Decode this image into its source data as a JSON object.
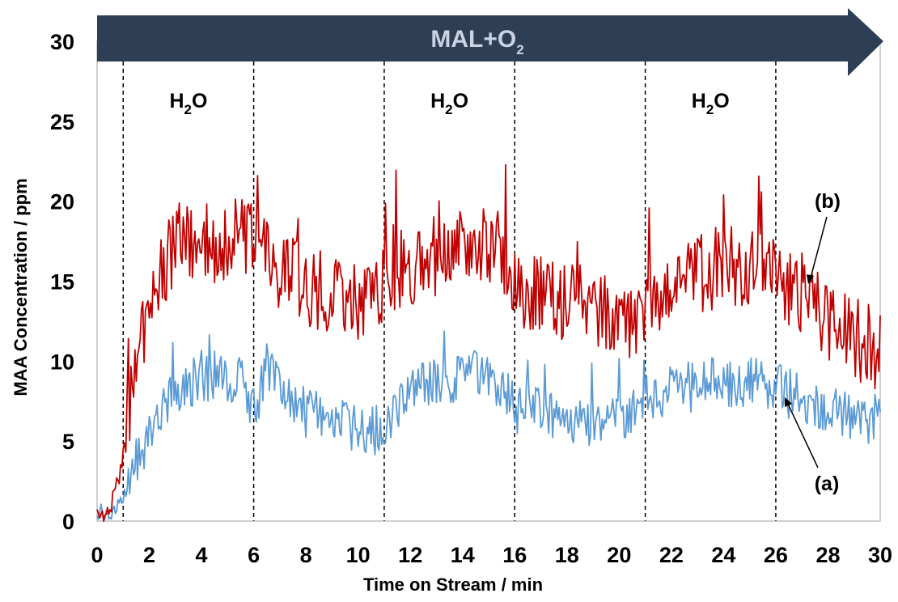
{
  "chart_data": {
    "type": "line",
    "xlabel": "Time on Stream / min",
    "ylabel": "MAA Concentration / ppm",
    "xlim": [
      0,
      30
    ],
    "ylim": [
      0,
      30
    ],
    "x_ticks": [
      "0",
      "2",
      "4",
      "6",
      "8",
      "10",
      "12",
      "14",
      "16",
      "18",
      "20",
      "22",
      "24",
      "26",
      "28",
      "30"
    ],
    "y_ticks": [
      "0",
      "5",
      "10",
      "15",
      "20",
      "25",
      "30"
    ],
    "grid": false,
    "legend": "none",
    "banner": {
      "text": "MAL+O",
      "subscript": "2",
      "color": "#2d3e55",
      "text_color": "#c9d3e4"
    },
    "phase_boundaries": [
      1,
      6,
      11,
      16,
      21,
      26
    ],
    "regions": [
      {
        "label": "H",
        "subscript": "2",
        "suffix": "O",
        "x_start": 1,
        "x_end": 6
      },
      {
        "label": "H",
        "subscript": "2",
        "suffix": "O",
        "x_start": 11,
        "x_end": 16
      },
      {
        "label": "H",
        "subscript": "2",
        "suffix": "O",
        "x_start": 21,
        "x_end": 26
      }
    ],
    "series": [
      {
        "label": "(a)",
        "color": "#5b9bd5",
        "x": [
          0,
          0.5,
          1,
          1.5,
          2,
          2.5,
          3,
          3.5,
          4,
          4.5,
          5,
          5.5,
          6,
          6.5,
          7,
          7.5,
          8,
          8.5,
          9,
          9.5,
          10,
          10.5,
          11,
          11.5,
          12,
          12.5,
          13,
          13.5,
          14,
          14.5,
          15,
          15.5,
          16,
          16.5,
          17,
          17.5,
          18,
          18.5,
          19,
          19.5,
          20,
          20.5,
          21,
          21.5,
          22,
          22.5,
          23,
          23.5,
          24,
          24.5,
          25,
          25.5,
          26,
          26.5,
          27,
          27.5,
          28,
          28.5,
          29,
          29.5,
          30
        ],
        "y": [
          0.2,
          0.3,
          1.6,
          4,
          5.2,
          6.8,
          8.2,
          8.7,
          8.9,
          9.1,
          8.8,
          8.7,
          7,
          9.5,
          8,
          7.6,
          6.8,
          6.5,
          6.2,
          5.9,
          5.6,
          5.5,
          6,
          7.2,
          8,
          8.6,
          8.9,
          9,
          8.9,
          9.2,
          9,
          8.7,
          6.8,
          6.9,
          7,
          6.8,
          6.5,
          6.4,
          6.3,
          6.2,
          6.2,
          6.6,
          7.5,
          7.8,
          8.1,
          8.3,
          8.5,
          8.6,
          8.8,
          8.7,
          8.8,
          8.6,
          8.3,
          8,
          7.7,
          7.3,
          7,
          6.8,
          6.6,
          6.4,
          6.3
        ]
      },
      {
        "label": "(b)",
        "color": "#c00000",
        "x": [
          0,
          0.5,
          1,
          1.5,
          2,
          2.5,
          3,
          3.5,
          4,
          4.5,
          5,
          5.5,
          6,
          6.5,
          7,
          7.5,
          8,
          8.5,
          9,
          9.5,
          10,
          10.5,
          11,
          11.5,
          12,
          12.5,
          13,
          13.5,
          14,
          14.5,
          15,
          15.5,
          16,
          16.5,
          17,
          17.5,
          18,
          18.5,
          19,
          19.5,
          20,
          20.5,
          21,
          21.5,
          22,
          22.5,
          23,
          23.5,
          24,
          24.5,
          25,
          25.5,
          26,
          26.5,
          27,
          27.5,
          28,
          28.5,
          29,
          29.5,
          30
        ],
        "y": [
          0.2,
          0.5,
          4,
          10.5,
          13.5,
          16,
          17.2,
          17.6,
          17.4,
          17.5,
          17.6,
          17.9,
          17.2,
          16.5,
          15.6,
          15.2,
          14.7,
          14.5,
          14.1,
          13.9,
          13.6,
          13.3,
          14.5,
          15.4,
          16,
          16.3,
          16.5,
          16.7,
          17,
          17.2,
          17.2,
          17.1,
          14.9,
          14.4,
          14,
          13.8,
          13.6,
          13.3,
          13.1,
          12.9,
          12.7,
          12.5,
          12.8,
          13.5,
          14.3,
          14.9,
          15.5,
          15.7,
          15.9,
          15.8,
          15.8,
          15.9,
          15.5,
          14.8,
          14.2,
          13.3,
          12.6,
          12,
          11.5,
          11,
          10.6
        ]
      }
    ]
  }
}
